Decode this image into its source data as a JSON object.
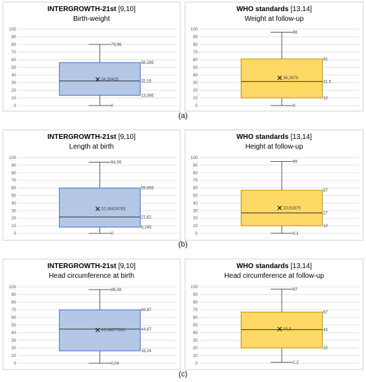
{
  "panel_labels": [
    "(a)",
    "(b)",
    "(c)"
  ],
  "colors": {
    "blue_fill": "#b4c7e7",
    "blue_stroke": "#4472c4",
    "yellow_fill": "#ffd966",
    "yellow_stroke": "#bf9000",
    "grid": "#d9d9d9",
    "whisker": "#595959"
  },
  "chart_data": [
    {
      "type": "box",
      "title_bold": "INTERGROWTH-21st",
      "title_ref": " [9,10]",
      "subtitle": "Birth-weight",
      "ylim": [
        0,
        100
      ],
      "yticks": [
        "0",
        "10",
        "20",
        "30",
        "40",
        "50",
        "60",
        "70",
        "80",
        "90",
        "100"
      ],
      "grid": true,
      "box": {
        "min": 0,
        "q1": 13.395,
        "median": 32.16,
        "q3": 56.285,
        "max": 79.96,
        "mean": 34.39425
      },
      "labels": {
        "min": "0",
        "q1": "13,395",
        "median": "32,16",
        "q3": "56,285",
        "max": "79,96",
        "mean": "34,39425"
      },
      "color": "blue"
    },
    {
      "type": "box",
      "title_bold": "WHO standards",
      "title_ref": " [13,14]",
      "subtitle": "Weight at follow-up",
      "ylim": [
        0,
        100
      ],
      "yticks": [
        "0",
        "10",
        "20",
        "30",
        "40",
        "50",
        "60",
        "70",
        "80",
        "90",
        "100"
      ],
      "grid": true,
      "box": {
        "min": 0,
        "q1": 10,
        "median": 31.5,
        "q3": 61,
        "max": 96,
        "mean": 36.2675
      },
      "labels": {
        "min": "0",
        "q1": "10",
        "median": "31,5",
        "q3": "61",
        "max": "96",
        "mean": "36,2675"
      },
      "color": "yellow"
    },
    {
      "type": "box",
      "title_bold": "INTERGROWTH-21st",
      "title_ref": " [9,10]",
      "subtitle": "Length at birth",
      "ylim": [
        0,
        100
      ],
      "yticks": [
        "0",
        "10",
        "20",
        "30",
        "40",
        "50",
        "60",
        "70",
        "80",
        "90",
        "100"
      ],
      "grid": true,
      "box": {
        "min": 0,
        "q1": 8.245,
        "median": 21.62,
        "q3": 59.865,
        "max": 94.06,
        "mean": 32.48434783
      },
      "labels": {
        "min": "0",
        "q1": "8,245",
        "median": "21,62",
        "q3": "59,865",
        "max": "94,06",
        "mean": "32,48434783"
      },
      "color": "blue"
    },
    {
      "type": "box",
      "title_bold": "WHO standards",
      "title_ref": " [13,14]",
      "subtitle": "Height at follow-up",
      "ylim": [
        0,
        100
      ],
      "yticks": [
        "0",
        "10",
        "20",
        "30",
        "40",
        "50",
        "60",
        "70",
        "80",
        "90",
        "100"
      ],
      "grid": true,
      "box": {
        "min": 0.1,
        "q1": 10,
        "median": 27,
        "q3": 57,
        "max": 95,
        "mean": 33.61875
      },
      "labels": {
        "min": "0,1",
        "q1": "10",
        "median": "27",
        "q3": "57",
        "max": "95",
        "mean": "33,61875"
      },
      "color": "yellow"
    },
    {
      "type": "box",
      "title_bold": "INTERGROWTH-21st",
      "title_ref": " [9,10]",
      "subtitle": "Head circumference at birth",
      "ylim": [
        0,
        100
      ],
      "yticks": [
        "0",
        "10",
        "20",
        "30",
        "40",
        "50",
        "60",
        "70",
        "80",
        "90",
        "100"
      ],
      "grid": true,
      "box": {
        "min": 0.04,
        "q1": 16.24,
        "median": 44.67,
        "q3": 69.87,
        "max": 96.38,
        "mean": 43.58077922
      },
      "labels": {
        "min": "0,04",
        "q1": "16,24",
        "median": "44,67",
        "q3": "69,87",
        "max": "96,38",
        "mean": "43,58077922"
      },
      "color": "blue"
    },
    {
      "type": "box",
      "title_bold": "WHO standards",
      "title_ref": " [13,14]",
      "subtitle": "Head circumference at follow-up",
      "ylim": [
        0,
        100
      ],
      "yticks": [
        "0",
        "10",
        "20",
        "30",
        "40",
        "50",
        "60",
        "70",
        "80",
        "90",
        "100"
      ],
      "grid": true,
      "box": {
        "min": 1.2,
        "q1": 20,
        "median": 44,
        "q3": 67,
        "max": 97,
        "mean": 44.8
      },
      "labels": {
        "min": "1,2",
        "q1": "20",
        "median": "44",
        "q3": "67",
        "max": "97",
        "mean": "44,8"
      },
      "color": "yellow"
    }
  ]
}
